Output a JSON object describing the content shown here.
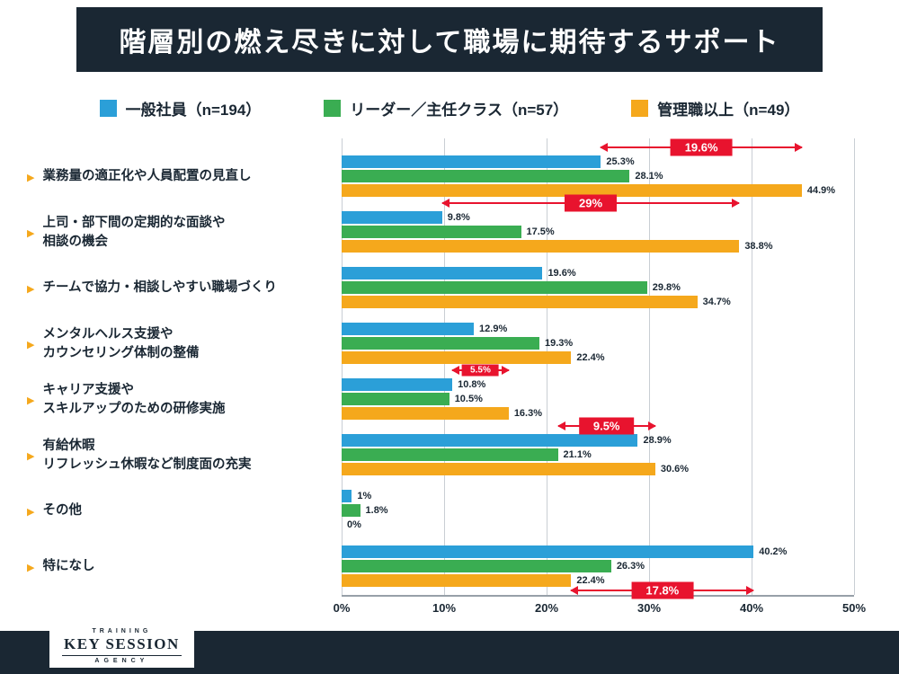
{
  "header": {
    "title": "階層別の燃え尽きに対して職場に期待するサポート"
  },
  "colors": {
    "navy": "#1a2733",
    "red": "#e8132e",
    "blue": "#2b9fd8",
    "green": "#3aad52",
    "orange": "#f5a81c"
  },
  "chart_data": {
    "type": "bar",
    "orientation": "horizontal",
    "title": "階層別の燃え尽きに対して職場に期待するサポート",
    "xlabel": "",
    "ylabel": "",
    "xlim": [
      0,
      50
    ],
    "grid": true,
    "legend_position": "top",
    "tick_values": [
      0,
      10,
      20,
      30,
      40,
      50
    ],
    "ticks": [
      "0%",
      "10%",
      "20%",
      "30%",
      "40%",
      "50%"
    ],
    "categories": [
      {
        "lines": [
          "業務量の適正化や人員配置の見直し"
        ]
      },
      {
        "lines": [
          "上司・部下間の定期的な面談や",
          "相談の機会"
        ]
      },
      {
        "lines": [
          "チームで協力・相談しやすい職場づくり"
        ]
      },
      {
        "lines": [
          "メンタルヘルス支援や",
          "カウンセリング体制の整備"
        ]
      },
      {
        "lines": [
          "キャリア支援や",
          "スキルアップのための研修実施"
        ]
      },
      {
        "lines": [
          "有給休暇",
          "リフレッシュ休暇など制度面の充実"
        ]
      },
      {
        "lines": [
          "その他"
        ]
      },
      {
        "lines": [
          "特になし"
        ]
      }
    ],
    "series": [
      {
        "label": "一般社員（n=194）",
        "color": "#2b9fd8",
        "values": [
          25.3,
          9.8,
          19.6,
          12.9,
          10.8,
          28.9,
          1,
          40.2
        ]
      },
      {
        "label": "リーダー／主任クラス（n=57）",
        "color": "#3aad52",
        "values": [
          28.1,
          17.5,
          29.8,
          19.3,
          10.5,
          21.1,
          1.8,
          26.3
        ]
      },
      {
        "label": "管理職以上（n=49）",
        "color": "#f5a81c",
        "values": [
          44.9,
          38.8,
          34.7,
          22.4,
          16.3,
          30.6,
          0,
          22.4
        ]
      }
    ],
    "annotations": [
      {
        "label": "19.6%",
        "row": 0,
        "from": 25.3,
        "to": 44.9,
        "position": "above",
        "small": false
      },
      {
        "label": "29%",
        "row": 1,
        "from": 9.8,
        "to": 38.8,
        "position": "above",
        "small": false
      },
      {
        "label": "5.5%",
        "row": 4,
        "from": 10.8,
        "to": 16.3,
        "position": "above",
        "small": true
      },
      {
        "label": "9.5%",
        "row": 5,
        "from": 21.1,
        "to": 30.6,
        "position": "above",
        "small": false
      },
      {
        "label": "17.8%",
        "row": 7,
        "from": 22.4,
        "to": 40.2,
        "position": "below",
        "small": false
      }
    ]
  },
  "footer": {
    "logo_top": "TRAINING",
    "logo_main": "KEY SESSION",
    "logo_sub": "AGENCY"
  }
}
